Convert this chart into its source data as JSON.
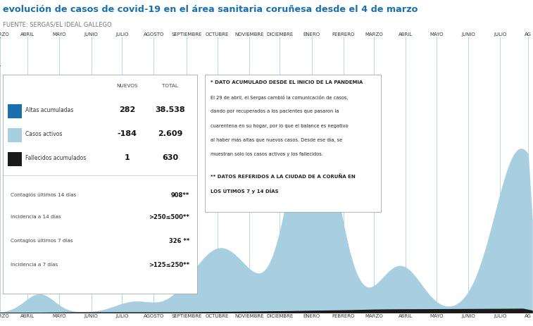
{
  "title": "evolución de casos de covid-19 en el área sanitaria coruñesa desde el 4 de marzo",
  "source": "FUENTE: SERGAS/EL IDEAL GALLEGO",
  "title_color": "#1a6faf",
  "source_color": "#777777",
  "bg_color": "#ffffff",
  "grid_color": "#b8d4e8",
  "months": [
    "MARZO",
    "ABRIL",
    "MAYO",
    "JUNIO",
    "JULIO",
    "AGOSTO",
    "SEPTIEMBRE",
    "OCTUBRE",
    "NOVIEMBRE",
    "DICIEMBRE",
    "ENERO",
    "FEBRERO",
    "MARZO",
    "ABRIL",
    "MAYO",
    "JUNIO",
    "JULIO",
    "AG"
  ],
  "active_color": "#a8cfe0",
  "discharged_color": "#1a6faf",
  "deaths_color": "#1a1a1a",
  "legend_items": [
    {
      "label": "Altas acumuladas",
      "color": "#1a6faf",
      "nuevos": "282",
      "total": "38.538"
    },
    {
      "label": "Casos activos",
      "color": "#a8cfe0",
      "nuevos": "-184",
      "total": "2.609"
    },
    {
      "label": "Fallecidos acumulados",
      "color": "#1a1a1a",
      "nuevos": "1",
      "total": "630"
    }
  ],
  "extra_items": [
    {
      "label": "Contagios últimos 14 días",
      "value": "908**"
    },
    {
      "label": "Incidencia a 14 días",
      "value": ">250≤500**"
    },
    {
      "label": "Contagios últimos 7 días",
      "value": "326 **"
    },
    {
      "label": "Incidencia a 7 días",
      "value": ">125≤250**"
    }
  ],
  "note_lines": [
    {
      "text": "* DATO ACUMULADO DESDE EL INICIO DE LA PANDEMIA",
      "bold": true,
      "size": 5.0
    },
    {
      "text": "El 29 de abril, el Sergas cambió la comunicación de casos,",
      "bold": false,
      "size": 4.8
    },
    {
      "text": "dando por recuperados a los pacientes que pasaron la",
      "bold": false,
      "size": 4.8
    },
    {
      "text": "cuarentena en su hogar, por lo que el balance es negativo",
      "bold": false,
      "size": 4.8
    },
    {
      "text": "al haber más altas que nuevos casos. Desde ese día, se",
      "bold": false,
      "size": 4.8
    },
    {
      "text": "muestran solo los casos activos y los fallecidos.",
      "bold": false,
      "size": 4.8
    },
    {
      "text": "",
      "bold": false,
      "size": 4.8
    },
    {
      "text": "** DATOS REFERIDOS A LA CIUDAD DE A CORUÑA EN",
      "bold": true,
      "size": 5.0
    },
    {
      "text": "LOS ÚTIMOS 7 y 14 DÍAS",
      "bold": true,
      "size": 5.0
    }
  ],
  "month_positions": [
    0,
    27,
    58,
    89,
    119,
    150,
    182,
    212,
    243,
    273,
    304,
    335,
    365,
    396,
    426,
    457,
    488,
    515
  ],
  "n_days": 520,
  "ymax": 4200
}
